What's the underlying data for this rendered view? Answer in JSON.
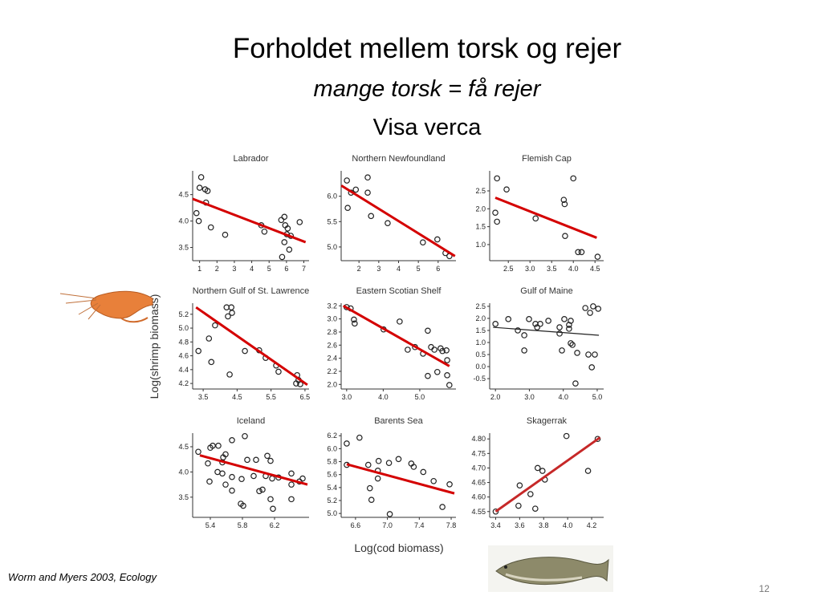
{
  "slide": {
    "title": "Forholdet mellem torsk og rejer",
    "subtitle": "mange torsk = få rejer",
    "subtitle2": "Visa verca",
    "citation": "Worm and Myers 2003, Ecology",
    "page": "12"
  },
  "axis_labels": {
    "x": "Log(cod biomass)",
    "y": "Log(shrimp biomass)"
  },
  "chart_data": [
    {
      "type": "scatter",
      "title": "Labrador",
      "marker_color": "#222",
      "x": [
        1.09,
        1.0,
        1.32,
        1.46,
        0.82,
        0.95,
        1.37,
        1.65,
        2.47,
        4.55,
        4.73,
        5.7,
        5.88,
        5.93,
        6.07,
        6.02,
        6.25,
        5.88,
        6.16,
        5.75,
        6.76
      ],
      "y": [
        4.83,
        4.63,
        4.6,
        4.57,
        4.15,
        4.0,
        4.35,
        3.88,
        3.74,
        3.92,
        3.8,
        4.02,
        4.08,
        3.92,
        3.86,
        3.75,
        3.72,
        3.6,
        3.46,
        3.32,
        3.98
      ],
      "xlim": [
        0.6,
        7.3
      ],
      "ylim": [
        3.25,
        4.95
      ],
      "xticks": [
        1,
        2,
        3,
        4,
        5,
        6,
        7
      ],
      "yticks": [
        3.5,
        {
          "value": 4,
          "label": "4.0"
        },
        4.5
      ],
      "fit": {
        "x": [
          0.6,
          7.1
        ],
        "y": [
          4.42,
          3.6
        ],
        "color": "#d40000"
      }
    },
    {
      "type": "scatter",
      "title": "Northern Newfoundland",
      "marker_color": "#222",
      "x": [
        1.39,
        1.6,
        1.84,
        2.44,
        2.44,
        1.43,
        2.61,
        3.45,
        5.23,
        5.96,
        6.37,
        6.57
      ],
      "y": [
        6.31,
        6.07,
        6.13,
        6.37,
        6.07,
        5.77,
        5.61,
        5.47,
        5.09,
        5.15,
        4.88,
        4.82
      ],
      "xlim": [
        1.1,
        6.9
      ],
      "ylim": [
        4.73,
        6.5
      ],
      "xticks": [
        2,
        3,
        4,
        5,
        6
      ],
      "yticks": [
        {
          "value": 5,
          "label": "5.0"
        },
        5.5,
        {
          "value": 6,
          "label": "6.0"
        }
      ],
      "fit": {
        "x": [
          1.11,
          6.85
        ],
        "y": [
          6.21,
          4.82
        ],
        "color": "#d40000"
      }
    },
    {
      "type": "scatter",
      "title": "Flemish Cap",
      "marker_color": "#222",
      "x": [
        2.24,
        2.46,
        2.2,
        2.24,
        3.13,
        4.0,
        3.78,
        3.8,
        3.81,
        4.11,
        4.19,
        4.56
      ],
      "y": [
        2.85,
        2.54,
        1.89,
        1.64,
        1.73,
        2.85,
        2.25,
        2.13,
        1.24,
        0.79,
        0.79,
        0.66
      ],
      "xlim": [
        2.07,
        4.7
      ],
      "ylim": [
        0.55,
        3.06
      ],
      "xticks": [
        2.5,
        {
          "value": 3,
          "label": "3.0"
        },
        3.5,
        {
          "value": 4,
          "label": "4.0"
        },
        4.5
      ],
      "yticks": [
        {
          "value": 1,
          "label": "1.0"
        },
        1.5,
        {
          "value": 2,
          "label": "2.0"
        },
        2.5
      ],
      "fit": {
        "x": [
          2.2,
          4.54
        ],
        "y": [
          2.31,
          1.19
        ],
        "color": "#d40000"
      }
    },
    {
      "type": "scatter",
      "title": "Northern Gulf of St. Lawrence",
      "marker_color": "#222",
      "x": [
        4.19,
        4.33,
        4.23,
        4.35,
        3.85,
        3.67,
        3.36,
        3.74,
        4.28,
        4.73,
        5.15,
        5.34,
        5.65,
        5.72,
        6.27,
        6.31,
        6.24,
        6.36
      ],
      "y": [
        5.3,
        5.3,
        5.17,
        5.22,
        5.04,
        4.85,
        4.67,
        4.51,
        4.33,
        4.67,
        4.68,
        4.57,
        4.46,
        4.37,
        4.32,
        4.25,
        4.2,
        4.19
      ],
      "xlim": [
        3.19,
        6.62
      ],
      "ylim": [
        4.12,
        5.36
      ],
      "xticks": [
        3.5,
        4.5,
        5.5,
        6.5
      ],
      "yticks": [
        4.2,
        4.4,
        4.6,
        4.8,
        {
          "value": 5,
          "label": "5.0"
        },
        5.2
      ],
      "fit": {
        "x": [
          3.29,
          6.57
        ],
        "y": [
          5.3,
          4.18
        ],
        "color": "#d40000"
      }
    },
    {
      "type": "scatter",
      "title": "Eastern Scotian Shelf",
      "marker_color": "#222",
      "x": [
        3.0,
        3.11,
        3.2,
        3.22,
        4.01,
        4.45,
        4.67,
        4.87,
        5.09,
        5.22,
        5.31,
        5.4,
        5.57,
        5.62,
        5.73,
        5.75,
        5.22,
        5.48,
        5.75,
        5.81
      ],
      "y": [
        3.18,
        3.16,
        2.99,
        2.93,
        2.84,
        2.96,
        2.53,
        2.57,
        2.47,
        2.82,
        2.57,
        2.53,
        2.55,
        2.51,
        2.52,
        2.37,
        2.13,
        2.19,
        2.14,
        1.99
      ],
      "xlim": [
        2.85,
        5.99
      ],
      "ylim": [
        1.93,
        3.24
      ],
      "xticks": [
        {
          "value": 3,
          "label": "3.0"
        },
        {
          "value": 4,
          "label": "4.0"
        },
        {
          "value": 5,
          "label": "5.0"
        }
      ],
      "yticks": [
        {
          "value": 2,
          "label": "2.0"
        },
        2.2,
        2.4,
        2.6,
        2.8,
        {
          "value": 3,
          "label": "3.0"
        },
        3.2
      ],
      "fit": {
        "x": [
          2.91,
          5.81
        ],
        "y": [
          3.2,
          2.28
        ],
        "color": "#d40000"
      }
    },
    {
      "type": "scatter",
      "title": "Gulf of Maine",
      "marker_color": "#222",
      "x": [
        2.0,
        2.38,
        2.66,
        2.85,
        2.99,
        3.18,
        3.23,
        3.32,
        3.56,
        3.89,
        3.89,
        4.03,
        4.17,
        4.17,
        4.22,
        4.22,
        4.27,
        3.96,
        4.41,
        4.65,
        4.79,
        4.88,
        5.03,
        4.74,
        4.93,
        4.84,
        4.36,
        2.85
      ],
      "y": [
        1.77,
        1.97,
        1.5,
        1.3,
        1.97,
        1.77,
        1.63,
        1.77,
        1.9,
        1.63,
        1.37,
        1.97,
        1.57,
        1.73,
        1.9,
        0.97,
        0.9,
        0.67,
        0.57,
        2.43,
        2.23,
        2.5,
        2.4,
        0.5,
        0.5,
        -0.03,
        -0.7,
        0.67
      ],
      "xlim": [
        1.83,
        5.19
      ],
      "ylim": [
        -0.93,
        2.63
      ],
      "xticks": [
        {
          "value": 2,
          "label": "2.0"
        },
        {
          "value": 3,
          "label": "3.0"
        },
        {
          "value": 4,
          "label": "4.0"
        },
        {
          "value": 5,
          "label": "5.0"
        }
      ],
      "yticks": [
        -0.5,
        {
          "value": 0,
          "label": "0.0"
        },
        0.5,
        {
          "value": 1,
          "label": "1.0"
        },
        1.5,
        {
          "value": 2,
          "label": "2.0"
        },
        2.5
      ],
      "fit": {
        "x": [
          1.93,
          5.05
        ],
        "y": [
          1.63,
          1.3
        ],
        "color": "#222"
      }
    },
    {
      "type": "scatter",
      "title": "Iceland",
      "marker_color": "#222",
      "x": [
        5.25,
        5.4,
        5.43,
        5.5,
        5.37,
        5.56,
        5.59,
        5.67,
        5.83,
        5.86,
        5.97,
        6.11,
        6.15,
        6.17,
        5.55,
        5.55,
        5.49,
        5.39,
        5.59,
        5.67,
        5.67,
        5.79,
        5.81,
        5.78,
        5.94,
        6.01,
        6.05,
        6.09,
        6.15,
        6.18,
        6.25,
        6.41,
        6.41,
        6.51,
        6.55,
        6.41
      ],
      "y": [
        4.4,
        4.48,
        4.52,
        4.52,
        4.17,
        4.29,
        4.35,
        4.63,
        4.71,
        4.24,
        4.24,
        4.32,
        4.22,
        3.87,
        4.19,
        3.97,
        4.0,
        3.81,
        3.75,
        3.63,
        3.9,
        3.86,
        3.33,
        3.37,
        3.92,
        3.62,
        3.65,
        3.92,
        3.46,
        3.27,
        3.89,
        3.97,
        3.75,
        3.81,
        3.87,
        3.46
      ],
      "xlim": [
        5.18,
        6.63
      ],
      "ylim": [
        3.1,
        4.77
      ],
      "xticks": [
        5.4,
        5.8,
        6.2
      ],
      "yticks": [
        3.5,
        {
          "value": 4,
          "label": "4.0"
        },
        4.5
      ],
      "fit": {
        "x": [
          5.27,
          6.61
        ],
        "y": [
          4.33,
          3.75
        ],
        "color": "#d40000"
      }
    },
    {
      "type": "scatter",
      "title": "Barents Sea",
      "marker_color": "#222",
      "x": [
        6.49,
        6.65,
        6.49,
        6.76,
        6.89,
        7.02,
        7.14,
        6.88,
        6.88,
        6.78,
        6.8,
        7.03,
        7.3,
        7.33,
        7.45,
        7.58,
        7.69,
        7.78
      ],
      "y": [
        6.08,
        6.17,
        5.75,
        5.75,
        5.81,
        5.78,
        5.84,
        5.66,
        5.54,
        5.39,
        5.21,
        4.99,
        5.77,
        5.72,
        5.64,
        5.5,
        5.1,
        5.45
      ],
      "xlim": [
        6.42,
        7.86
      ],
      "ylim": [
        4.94,
        6.24
      ],
      "xticks": [
        6.6,
        {
          "value": 7,
          "label": "7.0"
        },
        7.4,
        7.8
      ],
      "yticks": [
        {
          "value": 5,
          "label": "5.0"
        },
        5.2,
        5.4,
        5.6,
        5.8,
        {
          "value": 6,
          "label": "6.0"
        },
        6.2
      ],
      "fit": {
        "x": [
          6.49,
          7.84
        ],
        "y": [
          5.76,
          5.31
        ],
        "color": "#d40000"
      }
    },
    {
      "type": "scatter",
      "title": "Skagerrak",
      "marker_color": "#222",
      "x": [
        3.4,
        3.6,
        3.59,
        3.69,
        3.75,
        3.79,
        3.81,
        3.73,
        3.99,
        4.17,
        4.25
      ],
      "y": [
        4.55,
        4.64,
        4.57,
        4.61,
        4.7,
        4.69,
        4.66,
        4.56,
        4.81,
        4.69,
        4.8
      ],
      "xlim": [
        3.35,
        4.3
      ],
      "ylim": [
        4.53,
        4.82
      ],
      "xticks": [
        3.4,
        3.6,
        3.8,
        {
          "value": 4,
          "label": "4.0"
        },
        4.2
      ],
      "yticks": [
        4.55,
        {
          "value": 4.6,
          "label": "4.60"
        },
        4.65,
        {
          "value": 4.7,
          "label": "4.70"
        },
        4.75,
        {
          "value": 4.8,
          "label": "4.80"
        }
      ],
      "fit": {
        "x": [
          3.4,
          4.27
        ],
        "y": [
          4.55,
          4.805
        ],
        "color": "#c62828"
      }
    }
  ]
}
